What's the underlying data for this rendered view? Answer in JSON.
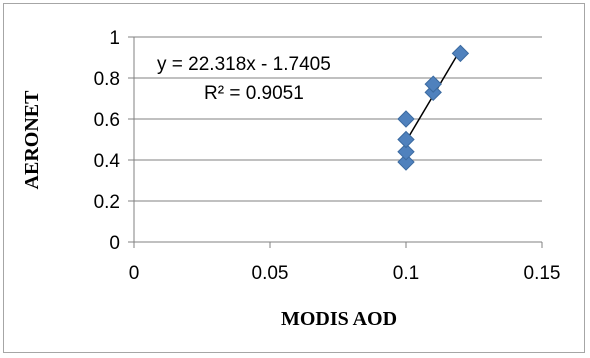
{
  "chart_data": {
    "type": "scatter",
    "title": "",
    "xlabel": "MODIS AOD",
    "ylabel": "AERONET",
    "xlim": [
      0,
      0.15
    ],
    "ylim": [
      0,
      1
    ],
    "x_ticks": [
      0,
      0.05,
      0.1,
      0.15
    ],
    "y_ticks": [
      0,
      0.2,
      0.4,
      0.6,
      0.8,
      1
    ],
    "x_tick_labels": [
      "0",
      "0.05",
      "0.1",
      "0.15"
    ],
    "y_tick_labels": [
      "0",
      "0.2",
      "0.4",
      "0.6",
      "0.8",
      "1"
    ],
    "grid": "horizontal",
    "legend": "none",
    "series": [
      {
        "marker": "diamond",
        "color": "#4f81bd",
        "points": [
          {
            "x": 0.1,
            "y": 0.39
          },
          {
            "x": 0.1,
            "y": 0.44
          },
          {
            "x": 0.1,
            "y": 0.5
          },
          {
            "x": 0.1,
            "y": 0.6
          },
          {
            "x": 0.11,
            "y": 0.73
          },
          {
            "x": 0.11,
            "y": 0.77
          },
          {
            "x": 0.12,
            "y": 0.92
          }
        ]
      }
    ],
    "trendline": {
      "type": "linear",
      "slope": 22.318,
      "intercept": -1.7405,
      "x_range": [
        0.1,
        0.12
      ],
      "color": "#000000"
    },
    "annotations": {
      "equation": "y = 22.318x - 1.7405",
      "r_squared": "R² = 0.9051"
    }
  }
}
